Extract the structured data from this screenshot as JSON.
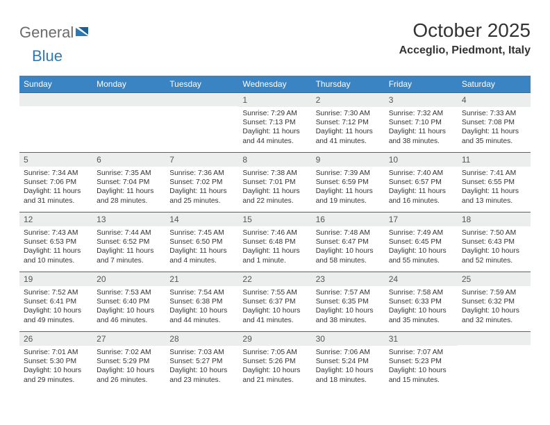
{
  "logo": {
    "text_gray": "General",
    "text_blue": "Blue"
  },
  "title": "October 2025",
  "location": "Acceglio, Piedmont, Italy",
  "colors": {
    "header_bg": "#3b84c4",
    "rule": "#2f6aa0",
    "daynum_bg": "#eceded",
    "logo_gray": "#6b6b6b",
    "logo_blue": "#2a7ab9"
  },
  "day_headers": [
    "Sunday",
    "Monday",
    "Tuesday",
    "Wednesday",
    "Thursday",
    "Friday",
    "Saturday"
  ],
  "weeks": [
    [
      {
        "n": "",
        "sr": "",
        "ss": "",
        "dl": ""
      },
      {
        "n": "",
        "sr": "",
        "ss": "",
        "dl": ""
      },
      {
        "n": "",
        "sr": "",
        "ss": "",
        "dl": ""
      },
      {
        "n": "1",
        "sr": "Sunrise: 7:29 AM",
        "ss": "Sunset: 7:13 PM",
        "dl": "Daylight: 11 hours and 44 minutes."
      },
      {
        "n": "2",
        "sr": "Sunrise: 7:30 AM",
        "ss": "Sunset: 7:12 PM",
        "dl": "Daylight: 11 hours and 41 minutes."
      },
      {
        "n": "3",
        "sr": "Sunrise: 7:32 AM",
        "ss": "Sunset: 7:10 PM",
        "dl": "Daylight: 11 hours and 38 minutes."
      },
      {
        "n": "4",
        "sr": "Sunrise: 7:33 AM",
        "ss": "Sunset: 7:08 PM",
        "dl": "Daylight: 11 hours and 35 minutes."
      }
    ],
    [
      {
        "n": "5",
        "sr": "Sunrise: 7:34 AM",
        "ss": "Sunset: 7:06 PM",
        "dl": "Daylight: 11 hours and 31 minutes."
      },
      {
        "n": "6",
        "sr": "Sunrise: 7:35 AM",
        "ss": "Sunset: 7:04 PM",
        "dl": "Daylight: 11 hours and 28 minutes."
      },
      {
        "n": "7",
        "sr": "Sunrise: 7:36 AM",
        "ss": "Sunset: 7:02 PM",
        "dl": "Daylight: 11 hours and 25 minutes."
      },
      {
        "n": "8",
        "sr": "Sunrise: 7:38 AM",
        "ss": "Sunset: 7:01 PM",
        "dl": "Daylight: 11 hours and 22 minutes."
      },
      {
        "n": "9",
        "sr": "Sunrise: 7:39 AM",
        "ss": "Sunset: 6:59 PM",
        "dl": "Daylight: 11 hours and 19 minutes."
      },
      {
        "n": "10",
        "sr": "Sunrise: 7:40 AM",
        "ss": "Sunset: 6:57 PM",
        "dl": "Daylight: 11 hours and 16 minutes."
      },
      {
        "n": "11",
        "sr": "Sunrise: 7:41 AM",
        "ss": "Sunset: 6:55 PM",
        "dl": "Daylight: 11 hours and 13 minutes."
      }
    ],
    [
      {
        "n": "12",
        "sr": "Sunrise: 7:43 AM",
        "ss": "Sunset: 6:53 PM",
        "dl": "Daylight: 11 hours and 10 minutes."
      },
      {
        "n": "13",
        "sr": "Sunrise: 7:44 AM",
        "ss": "Sunset: 6:52 PM",
        "dl": "Daylight: 11 hours and 7 minutes."
      },
      {
        "n": "14",
        "sr": "Sunrise: 7:45 AM",
        "ss": "Sunset: 6:50 PM",
        "dl": "Daylight: 11 hours and 4 minutes."
      },
      {
        "n": "15",
        "sr": "Sunrise: 7:46 AM",
        "ss": "Sunset: 6:48 PM",
        "dl": "Daylight: 11 hours and 1 minute."
      },
      {
        "n": "16",
        "sr": "Sunrise: 7:48 AM",
        "ss": "Sunset: 6:47 PM",
        "dl": "Daylight: 10 hours and 58 minutes."
      },
      {
        "n": "17",
        "sr": "Sunrise: 7:49 AM",
        "ss": "Sunset: 6:45 PM",
        "dl": "Daylight: 10 hours and 55 minutes."
      },
      {
        "n": "18",
        "sr": "Sunrise: 7:50 AM",
        "ss": "Sunset: 6:43 PM",
        "dl": "Daylight: 10 hours and 52 minutes."
      }
    ],
    [
      {
        "n": "19",
        "sr": "Sunrise: 7:52 AM",
        "ss": "Sunset: 6:41 PM",
        "dl": "Daylight: 10 hours and 49 minutes."
      },
      {
        "n": "20",
        "sr": "Sunrise: 7:53 AM",
        "ss": "Sunset: 6:40 PM",
        "dl": "Daylight: 10 hours and 46 minutes."
      },
      {
        "n": "21",
        "sr": "Sunrise: 7:54 AM",
        "ss": "Sunset: 6:38 PM",
        "dl": "Daylight: 10 hours and 44 minutes."
      },
      {
        "n": "22",
        "sr": "Sunrise: 7:55 AM",
        "ss": "Sunset: 6:37 PM",
        "dl": "Daylight: 10 hours and 41 minutes."
      },
      {
        "n": "23",
        "sr": "Sunrise: 7:57 AM",
        "ss": "Sunset: 6:35 PM",
        "dl": "Daylight: 10 hours and 38 minutes."
      },
      {
        "n": "24",
        "sr": "Sunrise: 7:58 AM",
        "ss": "Sunset: 6:33 PM",
        "dl": "Daylight: 10 hours and 35 minutes."
      },
      {
        "n": "25",
        "sr": "Sunrise: 7:59 AM",
        "ss": "Sunset: 6:32 PM",
        "dl": "Daylight: 10 hours and 32 minutes."
      }
    ],
    [
      {
        "n": "26",
        "sr": "Sunrise: 7:01 AM",
        "ss": "Sunset: 5:30 PM",
        "dl": "Daylight: 10 hours and 29 minutes."
      },
      {
        "n": "27",
        "sr": "Sunrise: 7:02 AM",
        "ss": "Sunset: 5:29 PM",
        "dl": "Daylight: 10 hours and 26 minutes."
      },
      {
        "n": "28",
        "sr": "Sunrise: 7:03 AM",
        "ss": "Sunset: 5:27 PM",
        "dl": "Daylight: 10 hours and 23 minutes."
      },
      {
        "n": "29",
        "sr": "Sunrise: 7:05 AM",
        "ss": "Sunset: 5:26 PM",
        "dl": "Daylight: 10 hours and 21 minutes."
      },
      {
        "n": "30",
        "sr": "Sunrise: 7:06 AM",
        "ss": "Sunset: 5:24 PM",
        "dl": "Daylight: 10 hours and 18 minutes."
      },
      {
        "n": "31",
        "sr": "Sunrise: 7:07 AM",
        "ss": "Sunset: 5:23 PM",
        "dl": "Daylight: 10 hours and 15 minutes."
      },
      {
        "n": "",
        "sr": "",
        "ss": "",
        "dl": ""
      }
    ]
  ]
}
